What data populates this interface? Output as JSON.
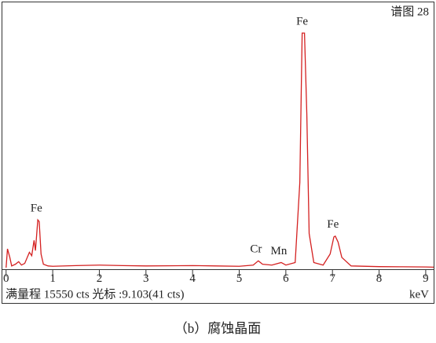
{
  "chart_data": {
    "type": "line",
    "title": "谱图 28",
    "x_label": "keV",
    "status": "满量程 15550 cts 光标 :9.103(41 cts)",
    "caption": "（b）腐蚀晶面",
    "x": [
      0,
      0.03,
      0.08,
      0.12,
      0.2,
      0.27,
      0.33,
      0.4,
      0.5,
      0.55,
      0.6,
      0.63,
      0.68,
      0.71,
      0.75,
      0.8,
      0.9,
      1.0,
      1.5,
      2.0,
      2.5,
      3.0,
      3.5,
      4.0,
      4.5,
      5.0,
      5.3,
      5.41,
      5.5,
      5.7,
      5.9,
      6.0,
      6.2,
      6.3,
      6.35,
      6.4,
      6.45,
      6.5,
      6.6,
      6.8,
      6.95,
      7.03,
      7.06,
      7.12,
      7.2,
      7.4,
      8.0,
      8.5,
      9.0,
      9.17
    ],
    "series": [
      {
        "color": "#d42020",
        "values": [
          0,
          1100,
          600,
          100,
          200,
          350,
          150,
          250,
          900,
          700,
          1600,
          1000,
          2800,
          2700,
          800,
          200,
          100,
          80,
          120,
          150,
          120,
          100,
          110,
          120,
          100,
          80,
          150,
          400,
          200,
          150,
          300,
          150,
          300,
          5000,
          13750,
          13750,
          9000,
          2000,
          300,
          150,
          800,
          1800,
          1850,
          1500,
          600,
          100,
          60,
          50,
          40,
          30
        ]
      }
    ],
    "annotations": [
      {
        "label": "Fe",
        "x": 0.7
      },
      {
        "label": "Cr",
        "x": 5.41
      },
      {
        "label": "Mn",
        "x": 5.9
      },
      {
        "label": "Fe",
        "x": 6.4
      },
      {
        "label": "Fe",
        "x": 7.06
      }
    ],
    "xlim": [
      -0.08,
      9.17
    ],
    "ylim": [
      0,
      15550
    ],
    "xticks": [
      0,
      1,
      2,
      3,
      4,
      5,
      6,
      7,
      8,
      9
    ]
  }
}
